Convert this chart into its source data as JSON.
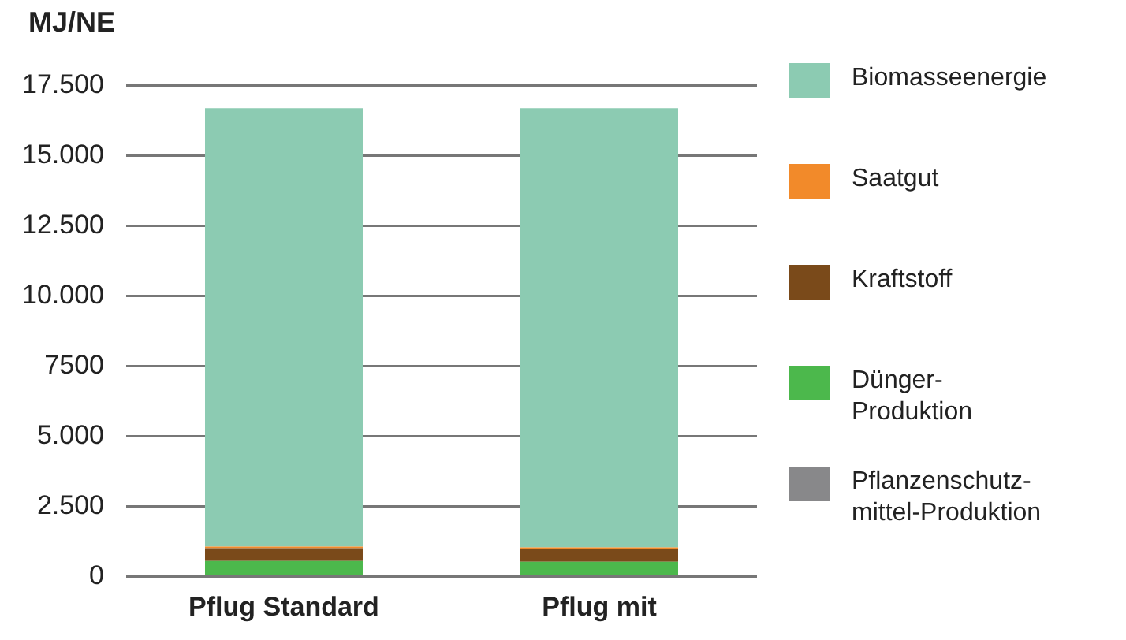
{
  "chart_data": {
    "type": "bar",
    "stacked": true,
    "ylabel": "MJ/NE",
    "categories": [
      "Pflug Standard",
      "Pflug mit"
    ],
    "series": [
      {
        "name": "Pflanzenschutz-\nmittel-Produktion",
        "color": "#88888a",
        "values": [
          null,
          null
        ]
      },
      {
        "name": "Dünger-\nProduktion",
        "color": "#4cb84c",
        "values": [
          550,
          520
        ]
      },
      {
        "name": "Kraftstoff",
        "color": "#7a4a1a",
        "values": [
          450,
          450
        ]
      },
      {
        "name": "Saatgut",
        "color": "#f28a2a",
        "values": [
          60,
          60
        ]
      },
      {
        "name": "Biomasseenergie",
        "color": "#8ccbb2",
        "values": [
          15630,
          15660
        ]
      }
    ],
    "ylim": [
      0,
      17500
    ],
    "yticks": [
      0,
      {
        "value": 2500,
        "label": "2.500"
      },
      {
        "value": 5000,
        "label": "5.000"
      },
      {
        "value": 7500,
        "label": "7500"
      },
      {
        "value": 10000,
        "label": "10.000"
      },
      {
        "value": 12500,
        "label": "12.500"
      },
      {
        "value": 15000,
        "label": "15.000"
      },
      {
        "value": 17500,
        "label": "17.500"
      }
    ],
    "grid": "y",
    "legend": "right"
  }
}
